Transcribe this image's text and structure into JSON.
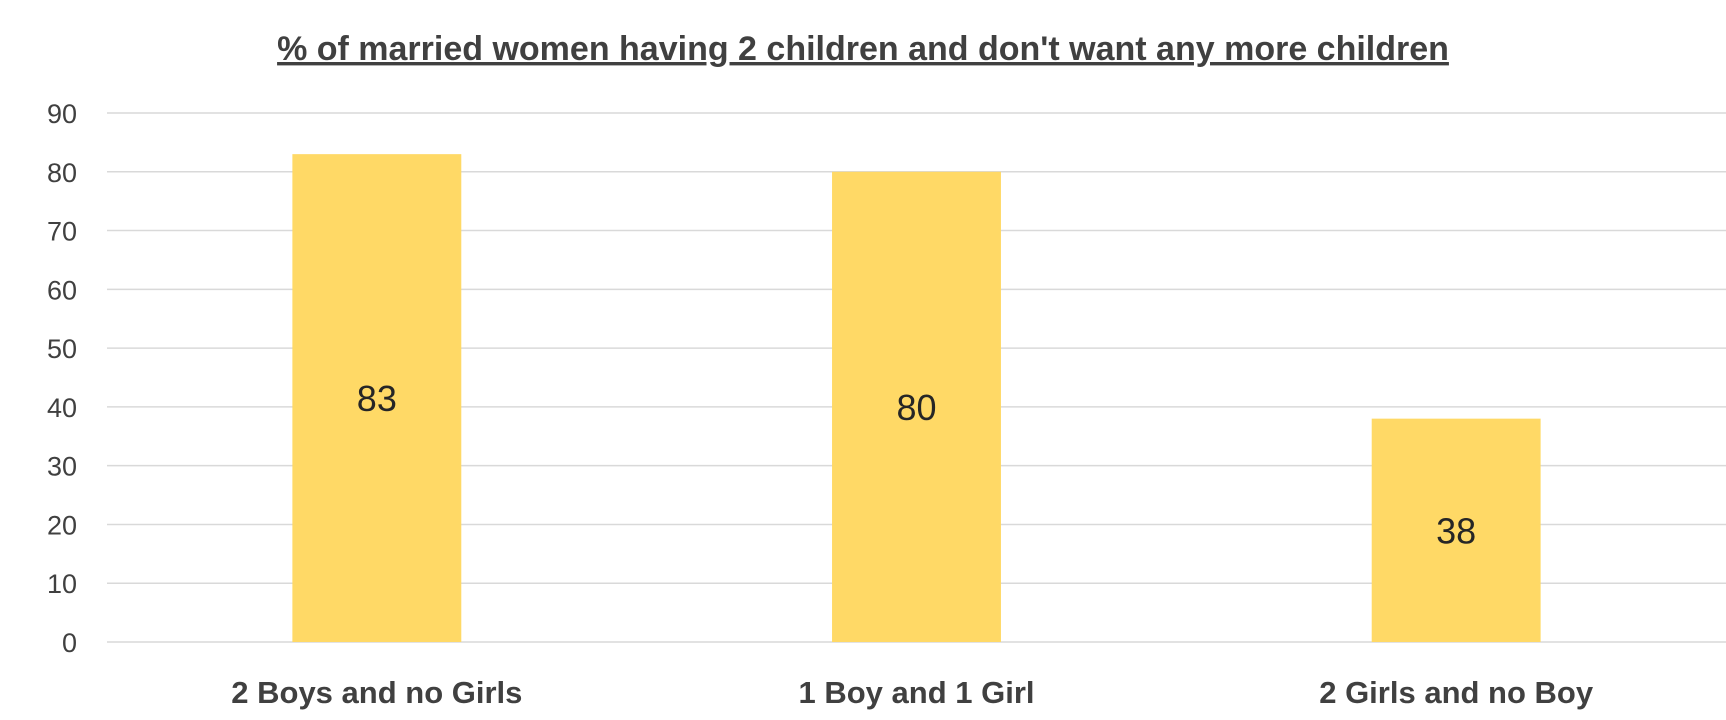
{
  "chart_data": {
    "type": "bar",
    "title": "% of married women having 2 children  and don't want any more children",
    "xlabel": "",
    "ylabel": "",
    "categories": [
      "2 Boys and no Girls",
      "1 Boy and 1 Girl",
      "2 Girls and no Boy"
    ],
    "values": [
      83,
      80,
      38
    ],
    "data_labels": [
      "83",
      "80",
      "38"
    ],
    "ylim": [
      0,
      90
    ],
    "yticks": [
      0,
      10,
      20,
      30,
      40,
      50,
      60,
      70,
      80,
      90
    ],
    "grid": true,
    "legend": "none",
    "colors": {
      "bar": "#FFD966",
      "text": "#404040",
      "grid": "#d9d9d9"
    }
  }
}
